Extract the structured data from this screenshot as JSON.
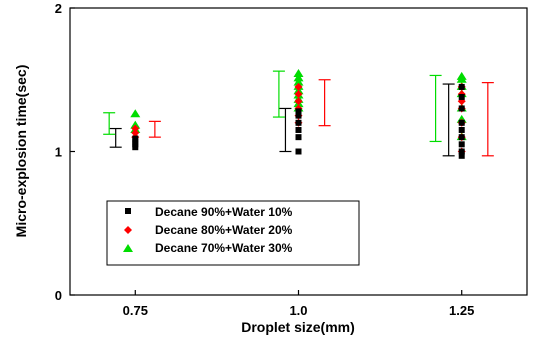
{
  "chart_data": {
    "type": "scatter",
    "title": "",
    "xlabel": "Droplet size(mm)",
    "ylabel": "Micro-explosion time(sec)",
    "xlim": [
      0.65,
      1.35
    ],
    "ylim": [
      0,
      2
    ],
    "x_ticks": [
      0.75,
      1.0,
      1.25
    ],
    "x_tick_labels": [
      "0.75",
      "1.0",
      "1.25"
    ],
    "y_ticks": [
      0,
      1,
      2
    ],
    "y_tick_labels": [
      "0",
      "1",
      "2"
    ],
    "grid": false,
    "legend_position": "bottom-left",
    "series": [
      {
        "name": "Decane 90%+Water 10%",
        "marker": "square",
        "color": "#000000",
        "points": [
          {
            "x": 0.75,
            "y": 1.03
          },
          {
            "x": 0.75,
            "y": 1.05
          },
          {
            "x": 0.75,
            "y": 1.07
          },
          {
            "x": 0.75,
            "y": 1.09
          },
          {
            "x": 1.0,
            "y": 1.0
          },
          {
            "x": 1.0,
            "y": 1.1
          },
          {
            "x": 1.0,
            "y": 1.15
          },
          {
            "x": 1.0,
            "y": 1.2
          },
          {
            "x": 1.0,
            "y": 1.25
          },
          {
            "x": 1.0,
            "y": 1.28
          },
          {
            "x": 1.25,
            "y": 0.97
          },
          {
            "x": 1.25,
            "y": 1.0
          },
          {
            "x": 1.25,
            "y": 1.05
          },
          {
            "x": 1.25,
            "y": 1.1
          },
          {
            "x": 1.25,
            "y": 1.15
          },
          {
            "x": 1.25,
            "y": 1.2
          },
          {
            "x": 1.25,
            "y": 1.3
          },
          {
            "x": 1.25,
            "y": 1.38
          },
          {
            "x": 1.25,
            "y": 1.45
          }
        ],
        "range_bar": {
          "offsets": [
            -0.03,
            -0.02,
            -0.02
          ],
          "lows": [
            1.03,
            1.0,
            0.97
          ],
          "highs": [
            1.16,
            1.3,
            1.47
          ]
        }
      },
      {
        "name": "Decane 80%+Water 20%",
        "marker": "diamond",
        "color": "#ff0000",
        "points": [
          {
            "x": 0.75,
            "y": 1.1
          },
          {
            "x": 0.75,
            "y": 1.13
          },
          {
            "x": 0.75,
            "y": 1.16
          },
          {
            "x": 1.0,
            "y": 1.2
          },
          {
            "x": 1.0,
            "y": 1.25
          },
          {
            "x": 1.0,
            "y": 1.3
          },
          {
            "x": 1.0,
            "y": 1.35
          },
          {
            "x": 1.0,
            "y": 1.4
          },
          {
            "x": 1.0,
            "y": 1.45
          },
          {
            "x": 1.25,
            "y": 1.0
          },
          {
            "x": 1.25,
            "y": 1.1
          },
          {
            "x": 1.25,
            "y": 1.2
          },
          {
            "x": 1.25,
            "y": 1.3
          },
          {
            "x": 1.25,
            "y": 1.35
          },
          {
            "x": 1.25,
            "y": 1.4
          },
          {
            "x": 1.25,
            "y": 1.45
          }
        ],
        "range_bar": {
          "offsets": [
            0.03,
            0.04,
            0.04
          ],
          "lows": [
            1.1,
            1.18,
            0.97
          ],
          "highs": [
            1.21,
            1.5,
            1.48
          ]
        }
      },
      {
        "name": "Decane 70%+Water 30%",
        "marker": "triangle",
        "color": "#00dd00",
        "points": [
          {
            "x": 0.75,
            "y": 1.15
          },
          {
            "x": 0.75,
            "y": 1.18
          },
          {
            "x": 0.75,
            "y": 1.26
          },
          {
            "x": 1.0,
            "y": 1.3
          },
          {
            "x": 1.0,
            "y": 1.33
          },
          {
            "x": 1.0,
            "y": 1.36
          },
          {
            "x": 1.0,
            "y": 1.39
          },
          {
            "x": 1.0,
            "y": 1.42
          },
          {
            "x": 1.0,
            "y": 1.45
          },
          {
            "x": 1.0,
            "y": 1.48
          },
          {
            "x": 1.0,
            "y": 1.51
          },
          {
            "x": 1.0,
            "y": 1.54
          },
          {
            "x": 1.25,
            "y": 1.1
          },
          {
            "x": 1.25,
            "y": 1.22
          },
          {
            "x": 1.25,
            "y": 1.3
          },
          {
            "x": 1.25,
            "y": 1.4
          },
          {
            "x": 1.25,
            "y": 1.45
          },
          {
            "x": 1.25,
            "y": 1.5
          },
          {
            "x": 1.25,
            "y": 1.52
          }
        ],
        "range_bar": {
          "offsets": [
            -0.04,
            -0.03,
            -0.04
          ],
          "lows": [
            1.12,
            1.24,
            1.07
          ],
          "highs": [
            1.27,
            1.56,
            1.53
          ]
        }
      }
    ]
  }
}
